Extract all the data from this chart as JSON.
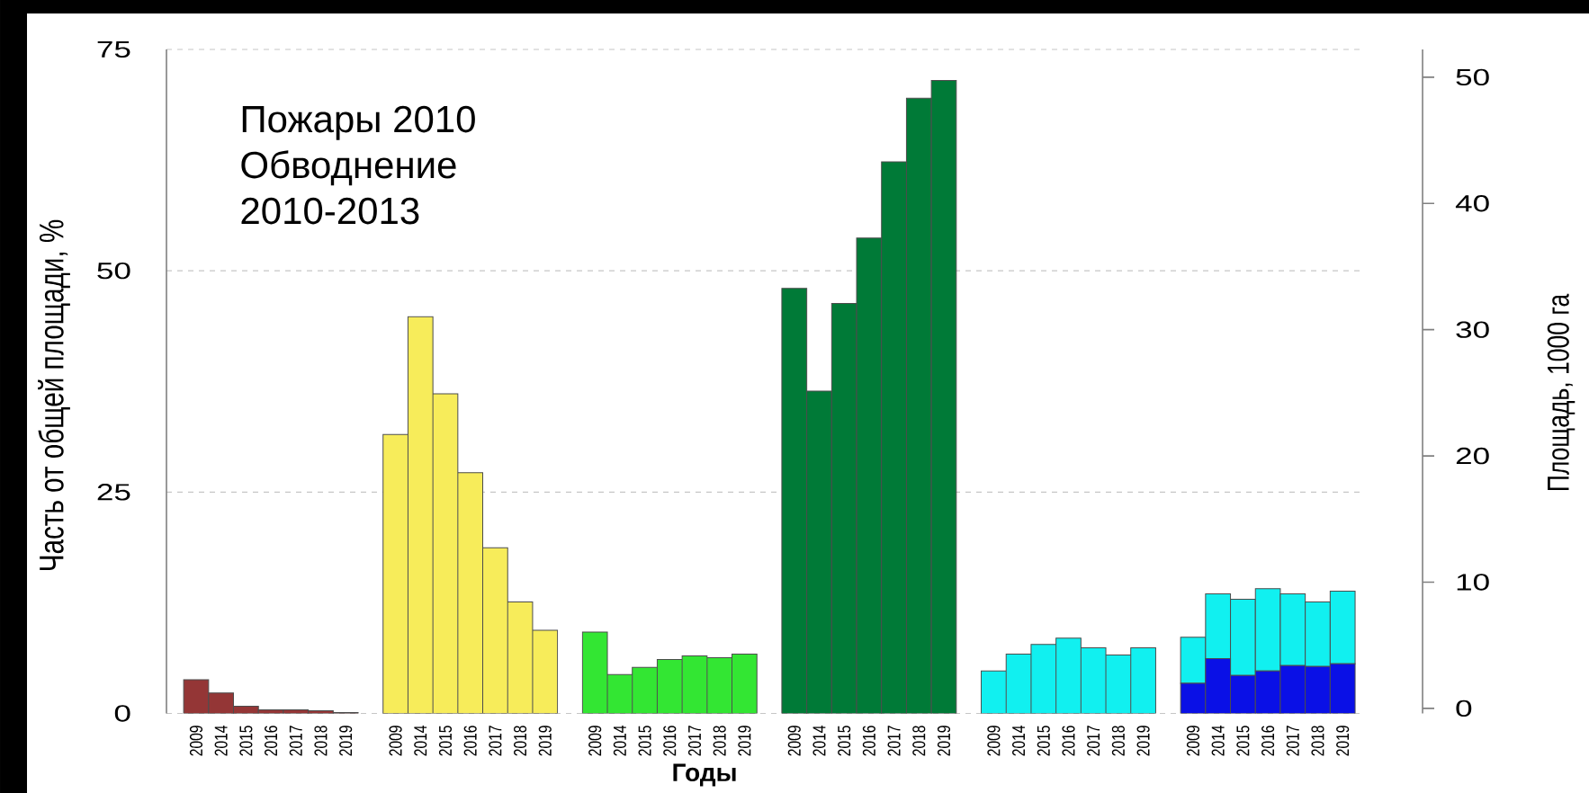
{
  "chart_data": {
    "type": "bar",
    "stacked": true,
    "grid": "y",
    "xlabel": "Годы",
    "ylabel": "Часть от общей площади, %",
    "y2label": "Площадь, 1000 га",
    "annotations": [
      "Пожары 2010",
      "Обводнение",
      "2010-2013"
    ],
    "categories": [
      "2009",
      "2014",
      "2015",
      "2016",
      "2017",
      "2018",
      "2019",
      null,
      "2009",
      "2014",
      "2015",
      "2016",
      "2017",
      "2018",
      "2019",
      null,
      "2009",
      "2014",
      "2015",
      "2016",
      "2017",
      "2018",
      "2019",
      null,
      "2009",
      "2014",
      "2015",
      "2016",
      "2017",
      "2018",
      "2019",
      null,
      "2009",
      "2014",
      "2015",
      "2016",
      "2017",
      "2018",
      "2019",
      null,
      "2009",
      "2014",
      "2015",
      "2016",
      "2017",
      "2018",
      "2019"
    ],
    "ylim": [
      0,
      75
    ],
    "yticks": [
      0,
      25,
      50,
      75
    ],
    "y2lim": [
      -0.4,
      52.2
    ],
    "y2ticks": [
      0,
      10,
      20,
      30,
      40,
      50
    ],
    "series": [
      {
        "color": "#943636",
        "values": [
          3.8,
          2.3,
          0.8,
          0.4,
          0.4,
          0.3,
          0.1,
          null,
          null,
          null,
          null,
          null,
          null,
          null,
          null,
          null,
          null,
          null,
          null,
          null,
          null,
          null,
          null,
          null,
          null,
          null,
          null,
          null,
          null,
          null,
          null,
          null,
          null,
          null,
          null,
          null,
          null,
          null,
          null,
          null,
          null,
          null,
          null,
          null,
          null,
          null,
          null
        ]
      },
      {
        "color": "#f7ec5a",
        "values": [
          null,
          null,
          null,
          null,
          null,
          null,
          null,
          null,
          31.5,
          44.8,
          36.1,
          27.2,
          18.7,
          12.6,
          9.4,
          null,
          null,
          null,
          null,
          null,
          null,
          null,
          null,
          null,
          null,
          null,
          null,
          null,
          null,
          null,
          null,
          null,
          null,
          null,
          null,
          null,
          null,
          null,
          null,
          null,
          null,
          null,
          null,
          null,
          null,
          null,
          null
        ]
      },
      {
        "color": "#33e633",
        "values": [
          null,
          null,
          null,
          null,
          null,
          null,
          null,
          null,
          null,
          null,
          null,
          null,
          null,
          null,
          null,
          null,
          9.2,
          4.4,
          5.2,
          6.1,
          6.5,
          6.3,
          6.7,
          null,
          null,
          null,
          null,
          null,
          null,
          null,
          null,
          null,
          null,
          null,
          null,
          null,
          null,
          null,
          null,
          null,
          null,
          null,
          null,
          null,
          null,
          null,
          null
        ]
      },
      {
        "color": "#007a37",
        "values": [
          null,
          null,
          null,
          null,
          null,
          null,
          null,
          null,
          null,
          null,
          null,
          null,
          null,
          null,
          null,
          null,
          null,
          null,
          null,
          null,
          null,
          null,
          null,
          null,
          48.0,
          36.4,
          46.3,
          53.7,
          62.3,
          69.5,
          71.5,
          null,
          null,
          null,
          null,
          null,
          null,
          null,
          null,
          null,
          null,
          null,
          null,
          null,
          null,
          null,
          null
        ]
      },
      {
        "color": "#0a10e6",
        "values": [
          null,
          null,
          null,
          null,
          null,
          null,
          null,
          null,
          null,
          null,
          null,
          null,
          null,
          null,
          null,
          null,
          null,
          null,
          null,
          null,
          null,
          null,
          null,
          null,
          null,
          null,
          null,
          null,
          null,
          null,
          null,
          null,
          null,
          null,
          null,
          null,
          null,
          null,
          null,
          null,
          3.4,
          6.2,
          4.3,
          4.8,
          5.4,
          5.3,
          5.6
        ]
      },
      {
        "color": "#11f0f0",
        "values": [
          null,
          null,
          null,
          null,
          null,
          null,
          null,
          null,
          null,
          null,
          null,
          null,
          null,
          null,
          null,
          null,
          null,
          null,
          null,
          null,
          null,
          null,
          null,
          null,
          null,
          null,
          null,
          null,
          null,
          null,
          null,
          null,
          4.8,
          6.7,
          7.8,
          8.5,
          7.4,
          6.6,
          7.4,
          null,
          5.2,
          7.3,
          8.6,
          9.3,
          8.1,
          7.3,
          8.2
        ]
      }
    ]
  }
}
